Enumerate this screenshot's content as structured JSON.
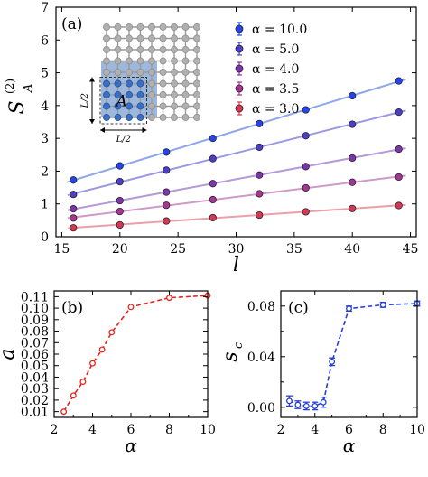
{
  "chart_data": [
    {
      "panel": "(a)",
      "type": "scatter",
      "xlabel": "l",
      "ylabel_main": "S",
      "ylabel_sub": "A",
      "ylabel_sup": "(2)",
      "xlim": [
        14.5,
        45.5
      ],
      "ylim": [
        0,
        7
      ],
      "xticks": [
        15,
        20,
        25,
        30,
        35,
        40,
        45
      ],
      "yticks": [
        0,
        1,
        2,
        3,
        4,
        5,
        6,
        7
      ],
      "x": [
        16,
        20,
        24,
        28,
        32,
        36,
        40,
        44
      ],
      "legend_position": "top-right",
      "series": [
        {
          "name": "α = 10.0",
          "color": "#2446e8",
          "fit_color": "#8fa6ea",
          "values": [
            1.73,
            2.16,
            2.58,
            3.0,
            3.45,
            3.87,
            4.3,
            4.75
          ]
        },
        {
          "name": "α = 5.0",
          "color": "#4b3fc2",
          "fit_color": "#9b9ae0",
          "values": [
            1.29,
            1.68,
            2.03,
            2.38,
            2.73,
            3.08,
            3.43,
            3.8
          ]
        },
        {
          "name": "α = 4.0",
          "color": "#7c36a8",
          "fit_color": "#b49ad8",
          "values": [
            0.85,
            1.1,
            1.36,
            1.62,
            1.88,
            2.14,
            2.4,
            2.67
          ]
        },
        {
          "name": "α = 3.5",
          "color": "#a63690",
          "fit_color": "#cf9ac6",
          "values": [
            0.57,
            0.77,
            0.96,
            1.13,
            1.31,
            1.49,
            1.66,
            1.82
          ]
        },
        {
          "name": "α = 3.0",
          "color": "#d8384e",
          "fit_color": "#eba0a8",
          "values": [
            0.27,
            0.36,
            0.48,
            0.58,
            0.66,
            0.76,
            0.86,
            0.95
          ]
        }
      ],
      "inset": {
        "grid_size": 9,
        "subsystem_label": "A",
        "size_label_x": "L/2",
        "size_label_y": "L/2"
      }
    },
    {
      "panel": "(b)",
      "type": "line",
      "xlabel": "α",
      "ylabel": "a",
      "xlim": [
        2,
        10
      ],
      "ylim": [
        0.005,
        0.115
      ],
      "xticks": [
        2,
        4,
        6,
        8,
        10
      ],
      "yticks": [
        "0.01",
        "0.02",
        "0.03",
        "0.04",
        "0.05",
        "0.06",
        "0.07",
        "0.08",
        "0.09",
        "0.10",
        "0.11"
      ],
      "color": "#e8241c",
      "x": [
        2.5,
        3.0,
        3.5,
        4.0,
        4.5,
        5.0,
        6.0,
        8.0,
        10.0
      ],
      "values": [
        0.01,
        0.024,
        0.036,
        0.052,
        0.064,
        0.079,
        0.101,
        0.109,
        0.111
      ]
    },
    {
      "panel": "(c)",
      "type": "line",
      "xlabel": "α",
      "ylabel": "s",
      "ylabel_sub": "c",
      "xlim": [
        2,
        10
      ],
      "ylim": [
        -0.008,
        0.092
      ],
      "xticks": [
        2,
        4,
        6,
        8,
        10
      ],
      "yticks": [
        "0.00",
        "0.04",
        "0.08"
      ],
      "color": "#2440d8",
      "x": [
        2.5,
        3.0,
        3.5,
        4.0,
        4.5,
        5.0,
        6.0,
        8.0,
        10.0
      ],
      "values": [
        0.005,
        0.002,
        0.001,
        0.001,
        0.004,
        0.036,
        0.078,
        0.081,
        0.082
      ],
      "errors": [
        0.004,
        0.003,
        0.003,
        0.003,
        0.004,
        0.003,
        0.002,
        0.002,
        0.002
      ]
    }
  ]
}
